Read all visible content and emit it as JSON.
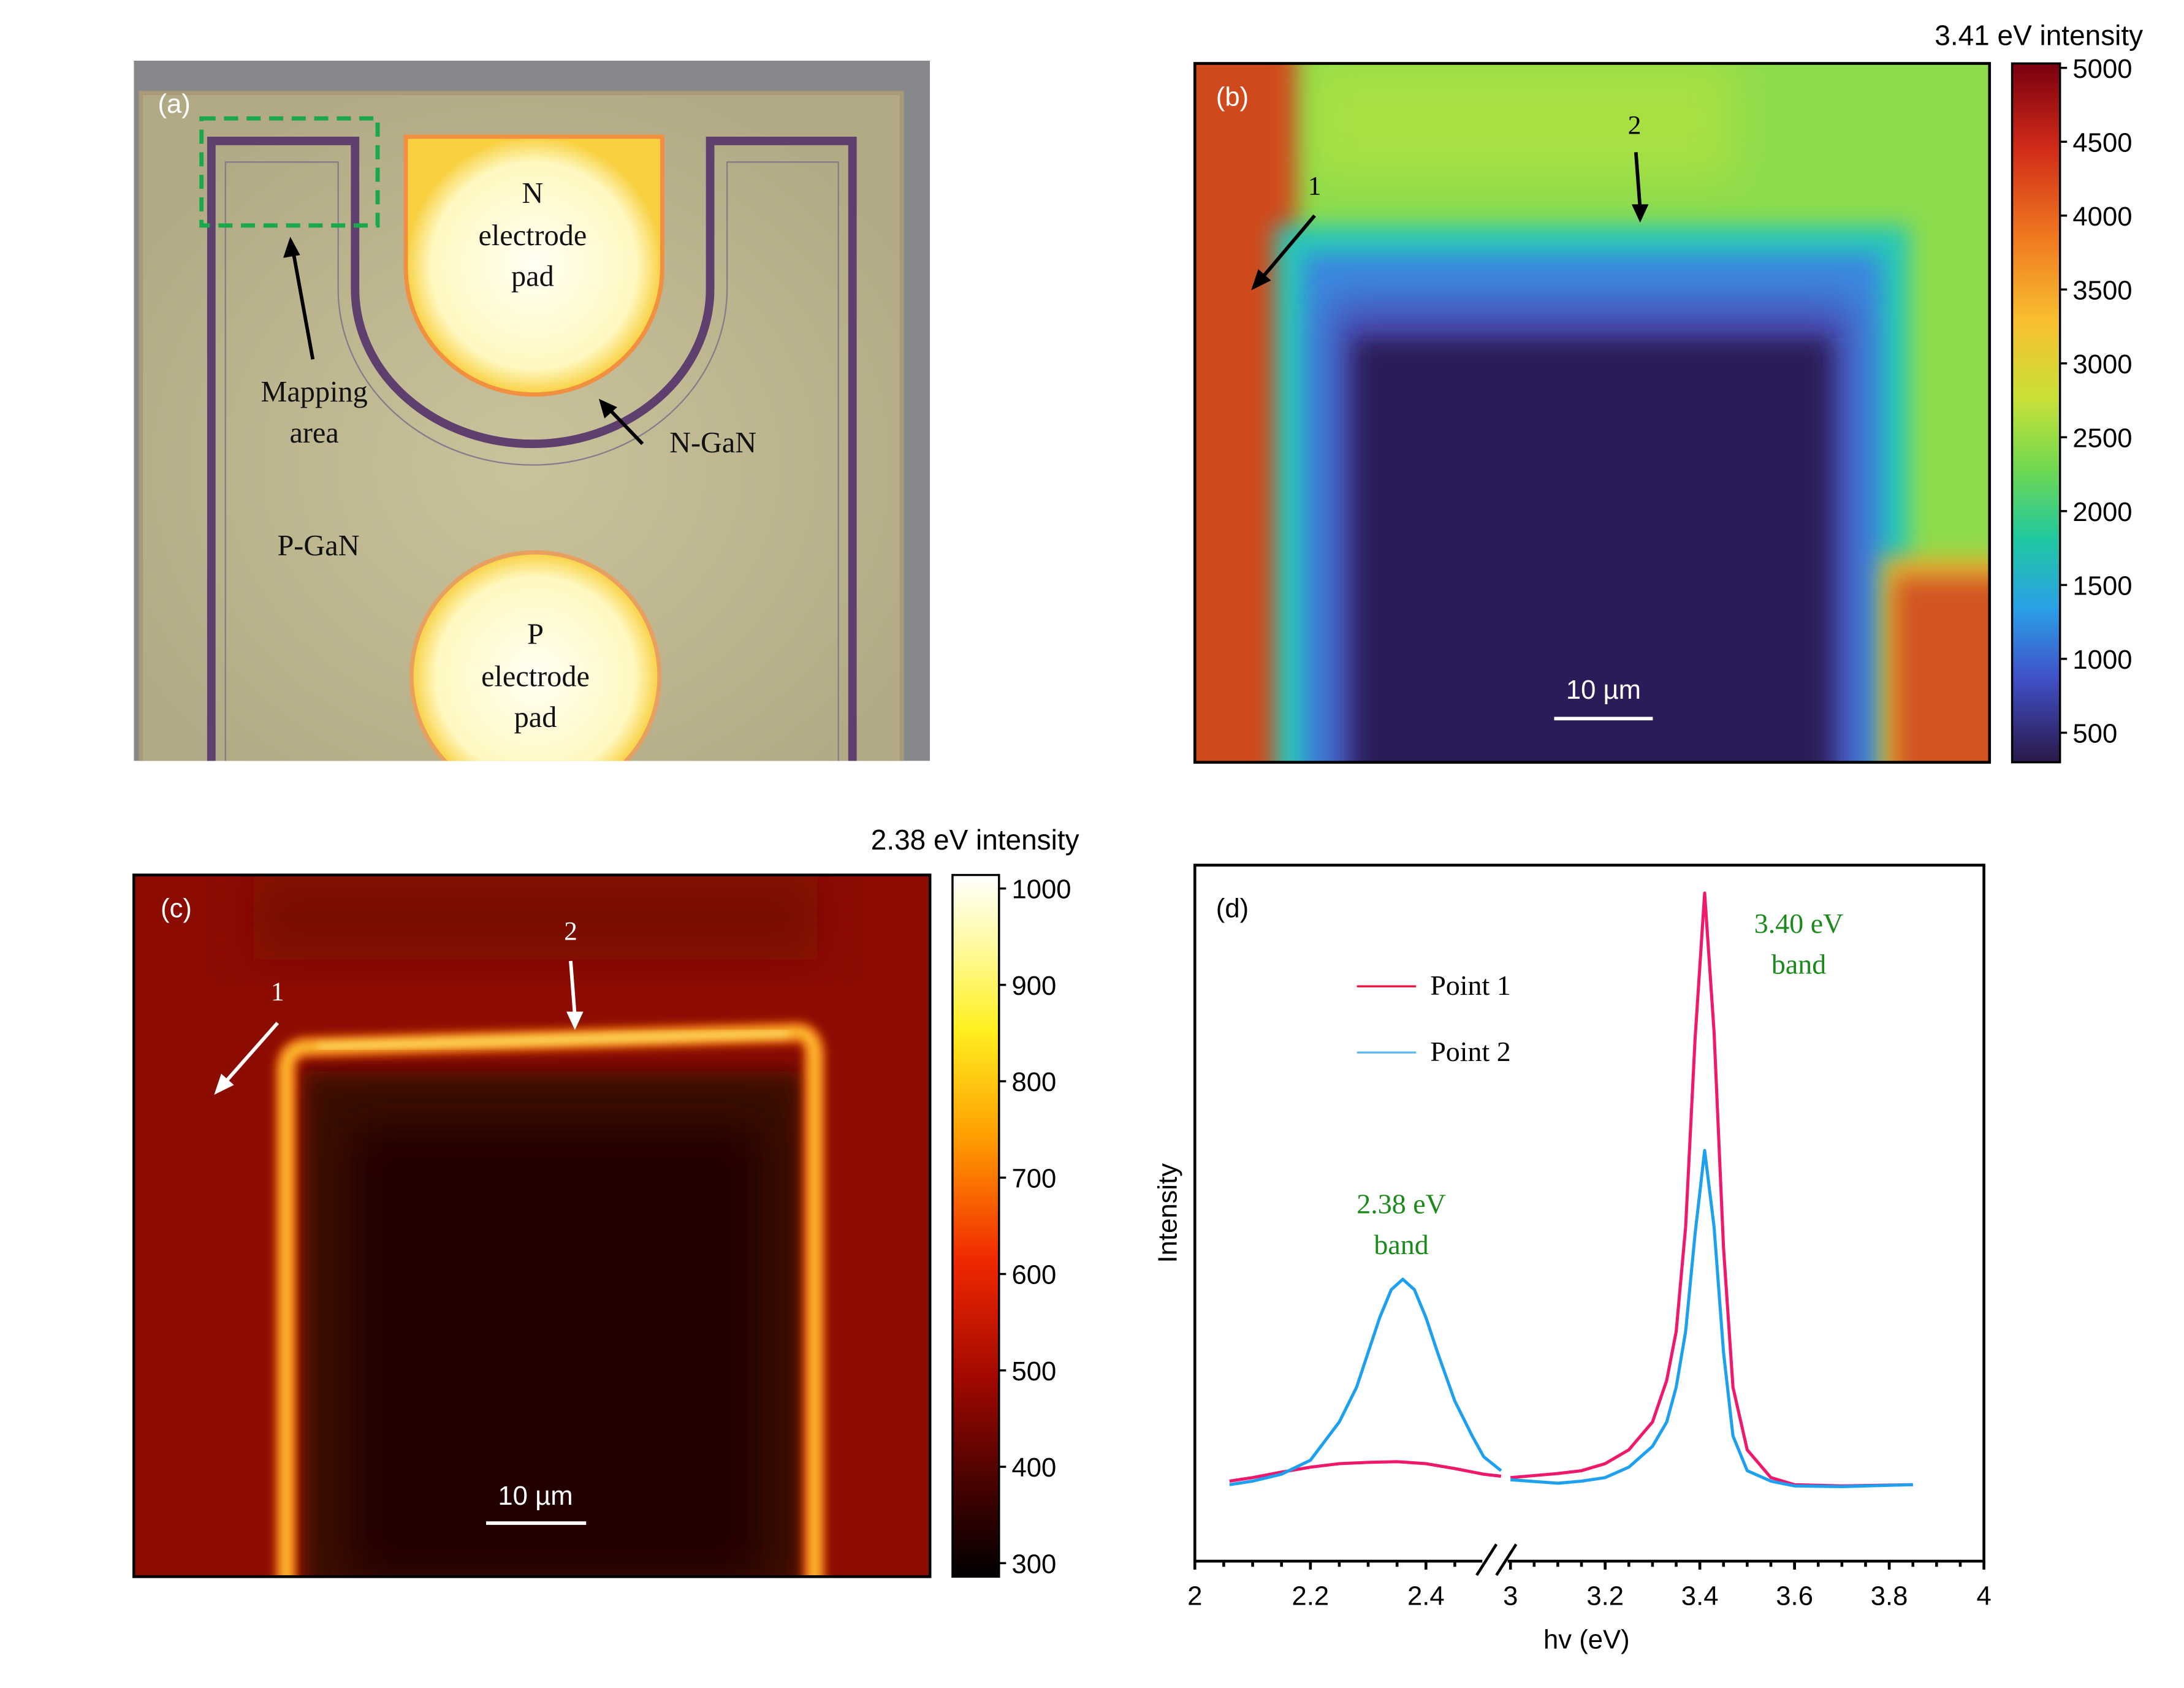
{
  "panel_a": {
    "label": "(a)",
    "n_pad": [
      "N",
      "electrode",
      "pad"
    ],
    "p_pad": [
      "P",
      "electrode",
      "pad"
    ],
    "mapping_area": [
      "Mapping",
      "area"
    ],
    "n_gan": "N-GaN",
    "p_gan": "P-GaN"
  },
  "panel_b": {
    "label": "(b)",
    "colorbar_title": "3.41 eV intensity",
    "colorbar_ticks": [
      "5000",
      "4500",
      "4000",
      "3500",
      "3000",
      "2500",
      "2000",
      "1500",
      "1000",
      "500"
    ],
    "colorbar_range": [
      300,
      5030
    ],
    "point_1": "1",
    "point_2": "2",
    "scalebar": "10 µm"
  },
  "panel_c": {
    "label": "(c)",
    "colorbar_title": "2.38 eV intensity",
    "colorbar_ticks": [
      "1000",
      "900",
      "800",
      "700",
      "600",
      "500",
      "400",
      "300"
    ],
    "colorbar_range": [
      286,
      1014
    ],
    "point_1": "1",
    "point_2": "2",
    "scalebar": "10 µm"
  },
  "chart_data": {
    "type": "line",
    "panel_label": "(d)",
    "xlabel_main": "hv",
    "xlabel_unit": " (eV)",
    "ylabel": "Intensity",
    "x_ticks_left": [
      "2",
      "2.2",
      "2.4"
    ],
    "x_ticks_right": [
      "3",
      "3.2",
      "3.4",
      "3.6",
      "3.8",
      "4"
    ],
    "xlim_left": [
      2,
      2.55
    ],
    "xlim_right": [
      3,
      4
    ],
    "ylim": [
      0,
      1
    ],
    "axis_break": true,
    "annotations": [
      {
        "lines": [
          "2.38 eV",
          "band"
        ],
        "x": 2.35,
        "color": "#1a8a1a"
      },
      {
        "lines": [
          "3.40 eV",
          "band"
        ],
        "x": 3.6,
        "color": "#1a8a1a"
      }
    ],
    "legend": "top-left",
    "series": [
      {
        "name": "Point 1",
        "color": "#f0186a",
        "left": {
          "x": [
            2.06,
            2.1,
            2.15,
            2.2,
            2.25,
            2.3,
            2.35,
            2.4,
            2.45,
            2.5,
            2.53
          ],
          "y": [
            0.115,
            0.12,
            0.128,
            0.135,
            0.14,
            0.142,
            0.143,
            0.14,
            0.133,
            0.125,
            0.122
          ]
        },
        "right": {
          "x": [
            3.0,
            3.1,
            3.15,
            3.2,
            3.25,
            3.3,
            3.33,
            3.35,
            3.37,
            3.39,
            3.41,
            3.43,
            3.45,
            3.47,
            3.5,
            3.55,
            3.6,
            3.7,
            3.85
          ],
          "y": [
            0.12,
            0.126,
            0.13,
            0.14,
            0.16,
            0.2,
            0.26,
            0.33,
            0.48,
            0.75,
            0.96,
            0.76,
            0.45,
            0.25,
            0.16,
            0.12,
            0.11,
            0.108,
            0.11
          ]
        }
      },
      {
        "name": "Point 2",
        "color": "#1ea0f0",
        "left": {
          "x": [
            2.06,
            2.1,
            2.15,
            2.2,
            2.25,
            2.28,
            2.3,
            2.32,
            2.34,
            2.36,
            2.38,
            2.4,
            2.42,
            2.45,
            2.48,
            2.5,
            2.53
          ],
          "y": [
            0.11,
            0.115,
            0.125,
            0.145,
            0.2,
            0.25,
            0.3,
            0.35,
            0.39,
            0.405,
            0.39,
            0.35,
            0.3,
            0.23,
            0.18,
            0.15,
            0.13
          ]
        },
        "right": {
          "x": [
            3.0,
            3.1,
            3.15,
            3.2,
            3.25,
            3.3,
            3.33,
            3.35,
            3.37,
            3.39,
            3.41,
            3.43,
            3.45,
            3.47,
            3.5,
            3.55,
            3.6,
            3.7,
            3.85
          ],
          "y": [
            0.117,
            0.112,
            0.115,
            0.12,
            0.135,
            0.165,
            0.2,
            0.25,
            0.33,
            0.47,
            0.59,
            0.48,
            0.3,
            0.18,
            0.13,
            0.115,
            0.108,
            0.107,
            0.11
          ]
        }
      }
    ]
  }
}
